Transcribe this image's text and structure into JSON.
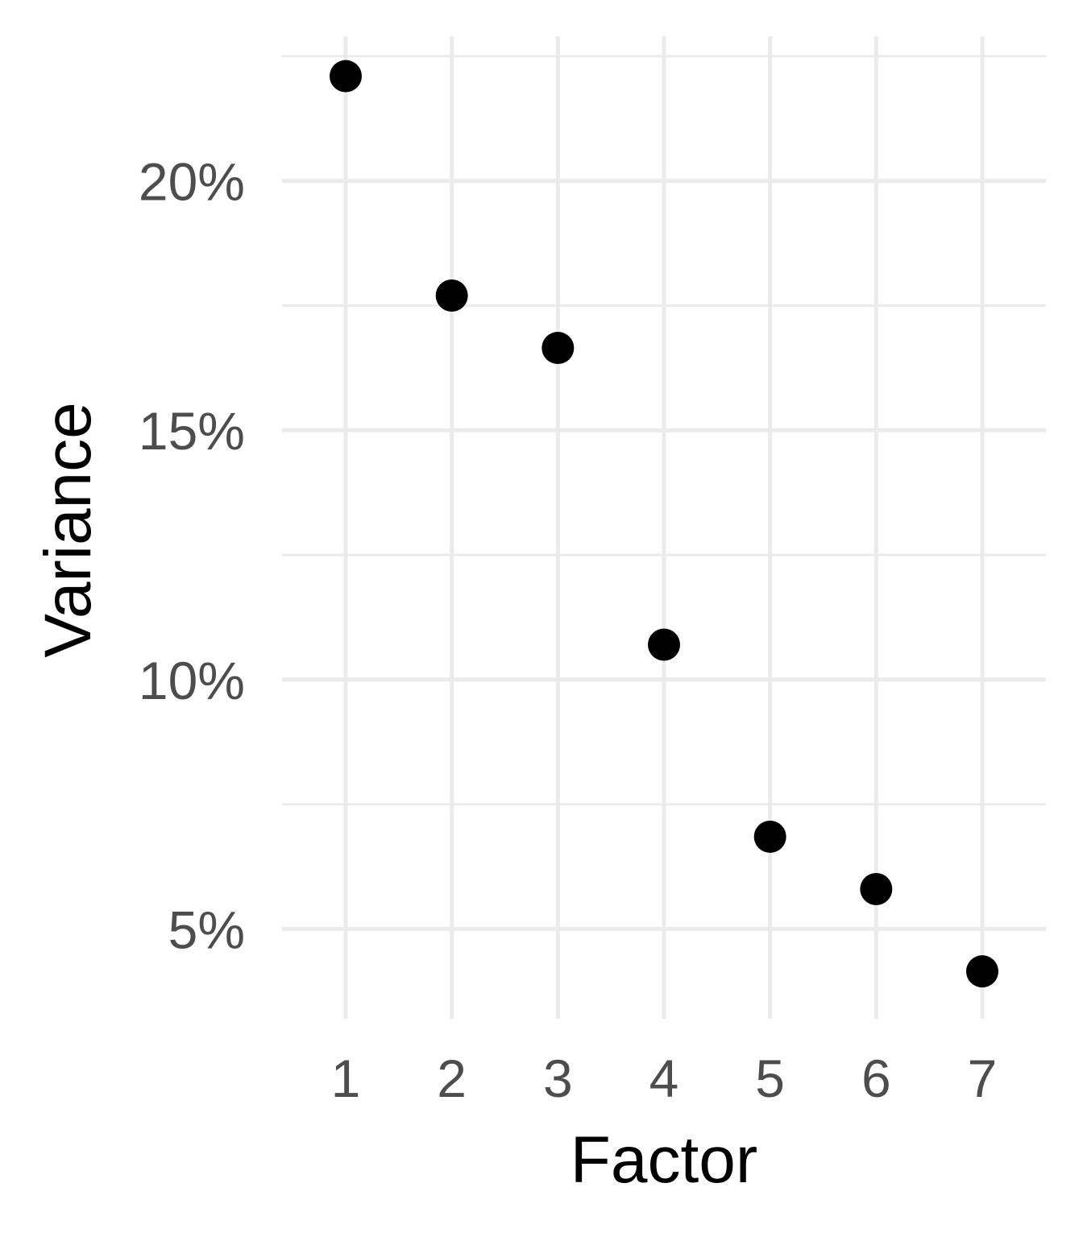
{
  "chart_data": {
    "type": "scatter",
    "xlabel": "Factor",
    "ylabel": "Variance",
    "x": [
      1,
      2,
      3,
      4,
      5,
      6,
      7
    ],
    "values": [
      0.221,
      0.177,
      0.1665,
      0.107,
      0.0685,
      0.058,
      0.0415
    ],
    "x_ticks": [
      1,
      2,
      3,
      4,
      5,
      6,
      7
    ],
    "x_tick_labels": [
      "1",
      "2",
      "3",
      "4",
      "5",
      "6",
      "7"
    ],
    "y_ticks": [
      0.05,
      0.1,
      0.15,
      0.2
    ],
    "y_tick_labels": [
      "5%",
      "10%",
      "15%",
      "20%"
    ],
    "y_minor_ticks": [
      0.075,
      0.125,
      0.175,
      0.225
    ],
    "xlim": [
      0.4,
      7.6
    ],
    "ylim": [
      0.032,
      0.229
    ],
    "grid": true,
    "legend": "none",
    "point_color": "#000000",
    "grid_color": "#ebebeb",
    "tick_label_color": "#4d4d4d"
  }
}
